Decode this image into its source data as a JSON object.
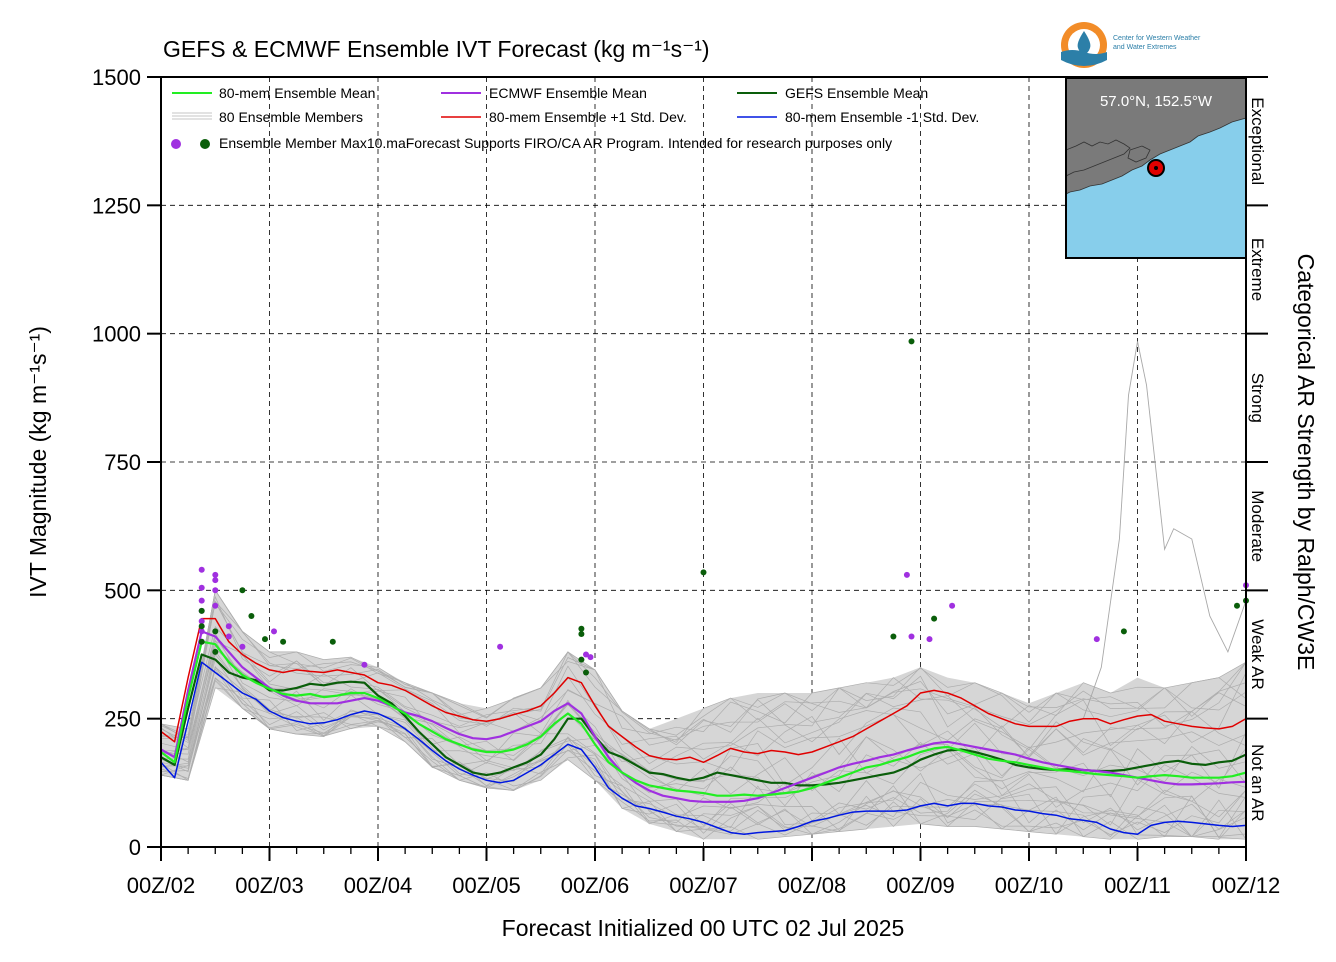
{
  "chart_data": {
    "type": "line",
    "title": "GEFS & ECMWF Ensemble IVT Forecast (kg m⁻¹s⁻¹)",
    "xlabel": "Forecast Initialized 00 UTC 02 Jul 2025",
    "ylabel": "IVT Magnitude (kg m⁻¹s⁻¹)",
    "right_label": "Categorical AR Strength by Ralph/CW3E",
    "ylim": [
      0,
      1500
    ],
    "xlim": [
      0,
      240
    ],
    "x_unit": "forecast hours from 00Z/02",
    "grid": true,
    "yticks": [
      {
        "value": 0,
        "label": "0"
      },
      {
        "value": 250,
        "label": "250"
      },
      {
        "value": 500,
        "label": "500"
      },
      {
        "value": 750,
        "label": "750"
      },
      {
        "value": 1000,
        "label": "1000"
      },
      {
        "value": 1250,
        "label": "1250"
      },
      {
        "value": 1500,
        "label": "1500"
      }
    ],
    "xticks": [
      {
        "value": 0,
        "label": "00Z/02"
      },
      {
        "value": 24,
        "label": "00Z/03"
      },
      {
        "value": 48,
        "label": "00Z/04"
      },
      {
        "value": 72,
        "label": "00Z/05"
      },
      {
        "value": 96,
        "label": "00Z/06"
      },
      {
        "value": 120,
        "label": "00Z/07"
      },
      {
        "value": 144,
        "label": "00Z/08"
      },
      {
        "value": 168,
        "label": "00Z/09"
      },
      {
        "value": 192,
        "label": "00Z/10"
      },
      {
        "value": 216,
        "label": "00Z/11"
      },
      {
        "value": 240,
        "label": "00Z/12"
      }
    ],
    "categories_right": [
      {
        "label": "Not an AR",
        "from": 0,
        "to": 250
      },
      {
        "label": "Weak AR",
        "from": 250,
        "to": 500
      },
      {
        "label": "Moderate",
        "from": 500,
        "to": 750
      },
      {
        "label": "Strong",
        "from": 750,
        "to": 1000
      },
      {
        "label": "Extreme",
        "from": 1000,
        "to": 1250
      },
      {
        "label": "Exceptional",
        "from": 1250,
        "to": 1500
      }
    ],
    "legend": {
      "placement": "top-left",
      "items": [
        {
          "label": "80-mem Ensemble Mean",
          "color": "#22ee22",
          "kind": "line"
        },
        {
          "label": "ECMWF Ensemble Mean",
          "color": "#a030e0",
          "kind": "line"
        },
        {
          "label": "GEFS Ensemble Mean",
          "color": "#0a5e0a",
          "kind": "line"
        },
        {
          "label": "80 Ensemble Members",
          "color": "#b3b3b3",
          "kind": "thin"
        },
        {
          "label": "80-mem Ensemble +1 Std. Dev.",
          "color": "#e00000",
          "kind": "line"
        },
        {
          "label": "80-mem Ensemble -1 Std. Dev.",
          "color": "#0018e0",
          "kind": "line"
        },
        {
          "label": "Ensemble Member Max",
          "color": "#a030e0",
          "color2": "#0a5e0a",
          "kind": "dots"
        }
      ],
      "note": "10.maForecast Supports FIRO/CA AR Program. Intended for research purposes only"
    },
    "series": [
      {
        "name": "80-mem Ensemble Mean",
        "color": "#22ee22",
        "width": 2.2,
        "x": [
          0,
          3,
          6,
          9,
          12,
          15,
          18,
          21,
          24,
          27,
          30,
          33,
          36,
          39,
          42,
          45,
          48,
          51,
          54,
          57,
          60,
          63,
          66,
          69,
          72,
          75,
          78,
          81,
          84,
          87,
          90,
          93,
          96,
          99,
          102,
          105,
          108,
          111,
          114,
          117,
          120,
          123,
          126,
          129,
          132,
          135,
          138,
          141,
          144,
          147,
          150,
          153,
          156,
          159,
          162,
          165,
          168,
          171,
          174,
          177,
          180,
          183,
          186,
          189,
          192,
          195,
          198,
          201,
          204,
          207,
          210,
          213,
          216,
          219,
          222,
          225,
          228,
          231,
          234,
          237,
          240
        ],
        "y": [
          185,
          165,
          290,
          400,
          395,
          360,
          335,
          320,
          308,
          298,
          295,
          298,
          292,
          295,
          300,
          300,
          290,
          275,
          260,
          240,
          225,
          210,
          200,
          190,
          185,
          185,
          190,
          200,
          215,
          240,
          260,
          240,
          200,
          165,
          145,
          130,
          120,
          115,
          110,
          108,
          105,
          100,
          100,
          102,
          100,
          102,
          105,
          108,
          115,
          125,
          135,
          145,
          155,
          160,
          168,
          175,
          185,
          192,
          195,
          188,
          180,
          172,
          168,
          165,
          160,
          155,
          150,
          148,
          145,
          142,
          140,
          138,
          135,
          138,
          140,
          138,
          135,
          135,
          135,
          138,
          145
        ]
      },
      {
        "name": "ECMWF Ensemble Mean",
        "color": "#a030e0",
        "width": 2.2,
        "x": [
          0,
          3,
          6,
          9,
          12,
          15,
          18,
          21,
          24,
          27,
          30,
          33,
          36,
          39,
          42,
          45,
          48,
          51,
          54,
          57,
          60,
          63,
          66,
          69,
          72,
          75,
          78,
          81,
          84,
          87,
          90,
          93,
          96,
          99,
          102,
          105,
          108,
          111,
          114,
          117,
          120,
          123,
          126,
          129,
          132,
          135,
          138,
          141,
          144,
          147,
          150,
          153,
          156,
          159,
          162,
          165,
          168,
          171,
          174,
          177,
          180,
          183,
          186,
          189,
          192,
          195,
          198,
          201,
          204,
          207,
          210,
          213,
          216,
          219,
          222,
          225,
          228,
          231,
          234,
          237,
          240
        ],
        "y": [
          190,
          175,
          305,
          420,
          410,
          380,
          350,
          330,
          310,
          295,
          285,
          280,
          280,
          280,
          285,
          290,
          285,
          275,
          262,
          255,
          245,
          232,
          220,
          212,
          210,
          215,
          225,
          235,
          245,
          265,
          280,
          260,
          215,
          175,
          145,
          125,
          110,
          100,
          95,
          90,
          88,
          88,
          88,
          90,
          95,
          105,
          115,
          125,
          135,
          145,
          155,
          162,
          168,
          175,
          180,
          188,
          195,
          202,
          205,
          200,
          195,
          190,
          185,
          180,
          172,
          165,
          160,
          155,
          150,
          148,
          145,
          140,
          135,
          130,
          125,
          122,
          122,
          123,
          124,
          126,
          127
        ]
      },
      {
        "name": "GEFS Ensemble Mean",
        "color": "#0a5e0a",
        "width": 2.2,
        "x": [
          0,
          3,
          6,
          9,
          12,
          15,
          18,
          21,
          24,
          27,
          30,
          33,
          36,
          39,
          42,
          45,
          48,
          51,
          54,
          57,
          60,
          63,
          66,
          69,
          72,
          75,
          78,
          81,
          84,
          87,
          90,
          93,
          96,
          99,
          102,
          105,
          108,
          111,
          114,
          117,
          120,
          123,
          126,
          129,
          132,
          135,
          138,
          141,
          144,
          147,
          150,
          153,
          156,
          159,
          162,
          165,
          168,
          171,
          174,
          177,
          180,
          183,
          186,
          189,
          192,
          195,
          198,
          201,
          204,
          207,
          210,
          213,
          216,
          219,
          222,
          225,
          228,
          231,
          234,
          237,
          240
        ],
        "y": [
          175,
          160,
          270,
          375,
          365,
          340,
          330,
          325,
          305,
          305,
          310,
          318,
          315,
          320,
          322,
          320,
          295,
          280,
          255,
          225,
          200,
          175,
          160,
          145,
          140,
          145,
          155,
          165,
          180,
          210,
          250,
          250,
          215,
          185,
          175,
          160,
          145,
          142,
          135,
          130,
          135,
          145,
          140,
          135,
          130,
          125,
          125,
          120,
          120,
          122,
          125,
          130,
          135,
          140,
          145,
          155,
          170,
          180,
          188,
          190,
          185,
          178,
          170,
          160,
          155,
          152,
          150,
          152,
          150,
          148,
          148,
          150,
          155,
          160,
          165,
          168,
          162,
          160,
          165,
          168,
          180
        ]
      },
      {
        "name": "80-mem Ensemble +1 Std. Dev.",
        "color": "#e00000",
        "width": 1.5,
        "x": [
          0,
          3,
          6,
          9,
          12,
          15,
          18,
          21,
          24,
          27,
          30,
          33,
          36,
          39,
          42,
          45,
          48,
          51,
          54,
          57,
          60,
          63,
          66,
          69,
          72,
          75,
          78,
          81,
          84,
          87,
          90,
          93,
          96,
          99,
          102,
          105,
          108,
          111,
          114,
          117,
          120,
          123,
          126,
          129,
          132,
          135,
          138,
          141,
          144,
          147,
          150,
          153,
          156,
          159,
          162,
          165,
          168,
          171,
          174,
          177,
          180,
          183,
          186,
          189,
          192,
          195,
          198,
          201,
          204,
          207,
          210,
          213,
          216,
          219,
          222,
          225,
          228,
          231,
          234,
          237,
          240
        ],
        "y": [
          225,
          205,
          330,
          445,
          445,
          400,
          375,
          358,
          345,
          340,
          345,
          342,
          340,
          345,
          340,
          335,
          320,
          315,
          305,
          290,
          275,
          262,
          255,
          248,
          245,
          250,
          258,
          265,
          275,
          300,
          330,
          320,
          275,
          235,
          215,
          195,
          178,
          172,
          170,
          175,
          165,
          178,
          192,
          185,
          182,
          188,
          185,
          180,
          185,
          195,
          205,
          215,
          230,
          245,
          260,
          275,
          300,
          305,
          300,
          290,
          275,
          260,
          250,
          240,
          235,
          235,
          235,
          245,
          250,
          250,
          240,
          248,
          255,
          258,
          245,
          240,
          235,
          232,
          230,
          235,
          250
        ]
      },
      {
        "name": "80-mem Ensemble -1 Std. Dev.",
        "color": "#0018e0",
        "width": 1.5,
        "x": [
          0,
          3,
          6,
          9,
          12,
          15,
          18,
          21,
          24,
          27,
          30,
          33,
          36,
          39,
          42,
          45,
          48,
          51,
          54,
          57,
          60,
          63,
          66,
          69,
          72,
          75,
          78,
          81,
          84,
          87,
          90,
          93,
          96,
          99,
          102,
          105,
          108,
          111,
          114,
          117,
          120,
          123,
          126,
          129,
          132,
          135,
          138,
          141,
          144,
          147,
          150,
          153,
          156,
          159,
          162,
          165,
          168,
          171,
          174,
          177,
          180,
          183,
          186,
          189,
          192,
          195,
          198,
          201,
          204,
          207,
          210,
          213,
          216,
          219,
          222,
          225,
          228,
          231,
          234,
          237,
          240
        ],
        "y": [
          165,
          135,
          245,
          360,
          340,
          320,
          300,
          288,
          265,
          252,
          245,
          240,
          242,
          248,
          258,
          265,
          260,
          248,
          230,
          210,
          188,
          168,
          152,
          140,
          130,
          125,
          130,
          145,
          160,
          180,
          200,
          190,
          155,
          115,
          95,
          80,
          75,
          68,
          60,
          55,
          48,
          38,
          28,
          25,
          28,
          30,
          32,
          40,
          50,
          55,
          62,
          68,
          70,
          70,
          70,
          72,
          80,
          85,
          80,
          85,
          85,
          80,
          78,
          72,
          70,
          65,
          62,
          55,
          52,
          48,
          35,
          28,
          25,
          42,
          48,
          50,
          48,
          45,
          42,
          40,
          42
        ]
      }
    ],
    "spread_band": {
      "name": "80 Ensemble Members",
      "color": "#b3b3b3",
      "x": [
        0,
        6,
        12,
        18,
        24,
        30,
        36,
        42,
        48,
        54,
        60,
        66,
        72,
        78,
        84,
        90,
        96,
        102,
        108,
        114,
        120,
        126,
        132,
        138,
        144,
        150,
        156,
        162,
        168,
        174,
        180,
        186,
        192,
        198,
        204,
        210,
        216,
        222,
        228,
        234,
        240
      ],
      "lo": [
        140,
        130,
        310,
        270,
        230,
        220,
        215,
        230,
        235,
        205,
        155,
        130,
        115,
        110,
        130,
        170,
        130,
        75,
        45,
        30,
        15,
        15,
        15,
        20,
        25,
        30,
        35,
        40,
        45,
        40,
        40,
        35,
        30,
        25,
        20,
        15,
        15,
        20,
        20,
        15,
        15
      ],
      "hi": [
        240,
        230,
        500,
        420,
        380,
        380,
        365,
        370,
        350,
        320,
        300,
        280,
        270,
        290,
        310,
        380,
        345,
        265,
        230,
        250,
        270,
        290,
        300,
        300,
        300,
        310,
        320,
        330,
        350,
        330,
        320,
        300,
        280,
        300,
        320,
        300,
        330,
        310,
        320,
        330,
        360
      ]
    },
    "spike_member": {
      "name": "member with highest peak",
      "color": "#a8a8a8",
      "x": [
        204,
        208,
        212,
        214,
        216,
        218,
        220,
        222,
        224,
        228,
        232,
        236,
        240
      ],
      "y": [
        250,
        350,
        600,
        880,
        985,
        900,
        740,
        580,
        620,
        600,
        450,
        380,
        480
      ]
    },
    "member_max": {
      "ecmwf": {
        "color": "#a030e0",
        "x": [
          9,
          9,
          9,
          9,
          9,
          9,
          9,
          12,
          12,
          12,
          12,
          15,
          15,
          18,
          25,
          45,
          75,
          94,
          95,
          165,
          166,
          170,
          175,
          207,
          240
        ],
        "y": [
          540,
          505,
          480,
          460,
          440,
          420,
          400,
          530,
          520,
          500,
          470,
          430,
          410,
          390,
          420,
          355,
          390,
          375,
          370,
          530,
          410,
          405,
          470,
          405,
          510
        ]
      },
      "gefs": {
        "color": "#0a5e0a",
        "x": [
          9,
          9,
          9,
          12,
          12,
          18,
          20,
          23,
          27,
          38,
          93,
          93,
          93,
          94,
          120,
          162,
          166,
          171,
          213,
          238,
          240
        ],
        "y": [
          460,
          430,
          400,
          420,
          380,
          500,
          450,
          405,
          400,
          400,
          425,
          415,
          365,
          340,
          535,
          410,
          985,
          445,
          420,
          470,
          480
        ]
      }
    },
    "inset_map": {
      "label": "57.0°N, 152.5°W",
      "land_color": "#7a7a7a",
      "sea_color": "#87ceeb",
      "marker_color": "#e00000"
    },
    "logo": {
      "line1": "Center for Western Weather",
      "line2": "and Water Extremes",
      "ring_color": "#f28c28",
      "drop_color": "#2c7fa8"
    }
  }
}
